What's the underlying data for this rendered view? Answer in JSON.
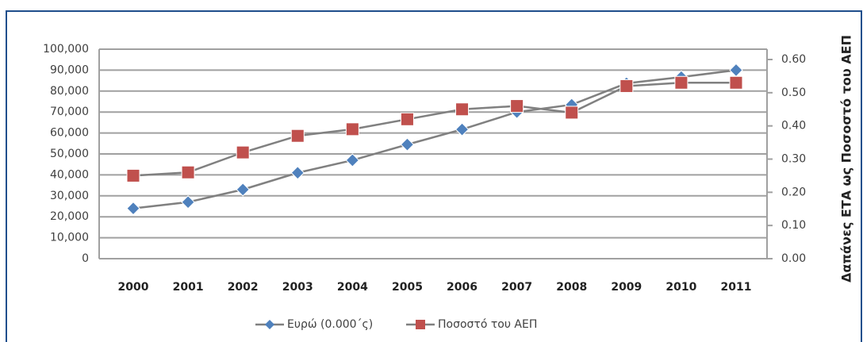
{
  "chart_data": {
    "type": "line",
    "y2label": "Δαπάνες ΕΤΑ ως Ποσοστό του ΑΕΠ",
    "categories": [
      "2000",
      "2001",
      "2002",
      "2003",
      "2004",
      "2005",
      "2006",
      "2007",
      "2008",
      "2009",
      "2010",
      "2011"
    ],
    "series": [
      {
        "name": "Ευρώ (0.000΄ς)",
        "color": "#4f81bd",
        "marker": "diamond",
        "values": [
          24000,
          27000,
          33000,
          41000,
          47000,
          54500,
          61700,
          70000,
          73500,
          83700,
          86700,
          90000
        ]
      },
      {
        "name": "Ποσοστό του ΑΕΠ",
        "color": "#c0504d",
        "marker": "square",
        "axis": "y2",
        "values": [
          0.25,
          0.26,
          0.32,
          0.37,
          0.39,
          0.42,
          0.45,
          0.46,
          0.44,
          0.52,
          0.53,
          0.53
        ]
      }
    ],
    "ylim": [
      0,
      100000
    ],
    "yticks": [
      0,
      {
        "value": 10000,
        "label": "10,000"
      },
      {
        "value": 20000,
        "label": "20,000"
      },
      {
        "value": 30000,
        "label": "30,000"
      },
      {
        "value": 40000,
        "label": "40,000"
      },
      {
        "value": 50000,
        "label": "50,000"
      },
      {
        "value": 60000,
        "label": "60,000"
      },
      {
        "value": 70000,
        "label": "70,000"
      },
      {
        "value": 80000,
        "label": "80,000"
      },
      {
        "value": 90000,
        "label": "90,000"
      },
      {
        "value": 100000,
        "label": "100,000"
      }
    ],
    "y2lim": [
      0,
      0.6
    ],
    "y2ticks": [
      {
        "value": 0,
        "label": "0.00"
      },
      {
        "value": 0.1,
        "label": "0.10"
      },
      {
        "value": 0.2,
        "label": "0.20"
      },
      {
        "value": 0.3,
        "label": "0.30"
      },
      {
        "value": 0.4,
        "label": "0.40"
      },
      {
        "value": 0.5,
        "label": "0.50"
      },
      {
        "value": 0.6,
        "label": "0.60"
      }
    ],
    "grid": true,
    "legend": "bottom",
    "line_color": "#808080"
  }
}
